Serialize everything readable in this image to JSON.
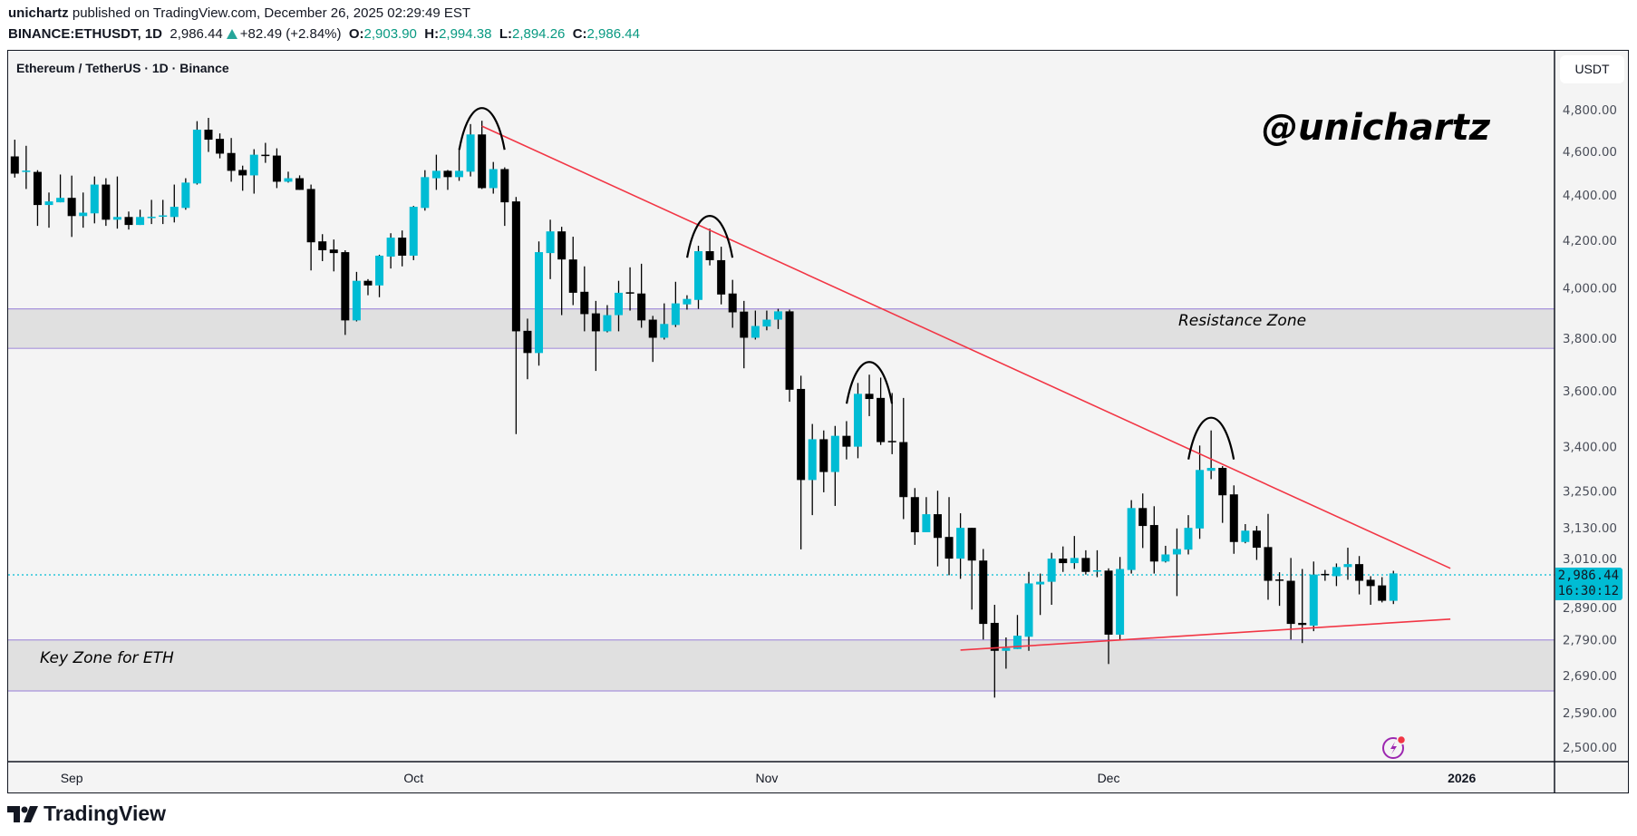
{
  "header": {
    "author": "unichartz",
    "published_text": "published on TradingView.com, December 26, 2025 02:29:49 EST",
    "symbol": "BINANCE:ETHUSDT, 1D",
    "last_price": "2,986.44",
    "change": "+82.49 (+2.84%)",
    "o_label": "O:",
    "o_value": "2,903.90",
    "h_label": "H:",
    "h_value": "2,994.38",
    "l_label": "L:",
    "l_value": "2,894.26",
    "c_label": "C:",
    "c_value": "2,986.44"
  },
  "pane": {
    "title": "Ethereum / TetherUS · 1D · Binance",
    "currency": "USDT",
    "watermark": "@unichartz",
    "current_price": "2,986.44",
    "countdown": "16:30:12",
    "resistance_label": "Resistance Zone",
    "key_zone_label": "Key Zone for ETH",
    "brand": "TradingView"
  },
  "colors": {
    "bull": "#00bcd4",
    "bear": "#000000",
    "wick": "#000000",
    "trendline": "#f23645",
    "zone_fill": "#e0e0e0",
    "zone_border": "#a894dc",
    "price_line": "#00bcd4"
  },
  "chart_data": {
    "type": "candlestick",
    "title": "Ethereum / TetherUS · 1D · Binance",
    "y_scale": "log",
    "ylim": [
      2500,
      4800
    ],
    "grid": false,
    "y_ticks": [
      "4,800.00",
      "4,600.00",
      "4,400.00",
      "4,200.00",
      "4,000.00",
      "3,800.00",
      "3,600.00",
      "3,400.00",
      "3,250.00",
      "3,130.00",
      "3,010.00",
      "2,890.00",
      "2,790.00",
      "2,690.00",
      "2,590.00",
      "2,500.00"
    ],
    "x_ticks": [
      {
        "label": "Sep",
        "date": "2025-09-01"
      },
      {
        "label": "Oct",
        "date": "2025-10-01"
      },
      {
        "label": "Nov",
        "date": "2025-11-01"
      },
      {
        "label": "Dec",
        "date": "2025-12-01"
      },
      {
        "label": "2026",
        "date": "2026-01-01"
      }
    ],
    "columns": [
      "date",
      "open",
      "high",
      "low",
      "close"
    ],
    "candles": [
      [
        "2025-08-27",
        4576,
        4655,
        4478,
        4496
      ],
      [
        "2025-08-28",
        4505,
        4626,
        4426,
        4510
      ],
      [
        "2025-08-29",
        4504,
        4512,
        4262,
        4354
      ],
      [
        "2025-08-30",
        4354,
        4410,
        4254,
        4370
      ],
      [
        "2025-08-31",
        4366,
        4492,
        4366,
        4386
      ],
      [
        "2025-09-01",
        4386,
        4487,
        4214,
        4305
      ],
      [
        "2025-09-02",
        4305,
        4410,
        4254,
        4320
      ],
      [
        "2025-09-03",
        4317,
        4483,
        4273,
        4446
      ],
      [
        "2025-09-04",
        4446,
        4475,
        4262,
        4289
      ],
      [
        "2025-09-05",
        4289,
        4483,
        4250,
        4301
      ],
      [
        "2025-09-06",
        4301,
        4325,
        4246,
        4266
      ],
      [
        "2025-09-07",
        4266,
        4333,
        4266,
        4301
      ],
      [
        "2025-09-08",
        4300,
        4377,
        4270,
        4302
      ],
      [
        "2025-09-09",
        4305,
        4377,
        4270,
        4308
      ],
      [
        "2025-09-10",
        4301,
        4446,
        4277,
        4346
      ],
      [
        "2025-09-11",
        4341,
        4475,
        4333,
        4455
      ],
      [
        "2025-09-12",
        4451,
        4744,
        4446,
        4703
      ],
      [
        "2025-09-13",
        4703,
        4760,
        4597,
        4655
      ],
      [
        "2025-09-14",
        4659,
        4685,
        4567,
        4589
      ],
      [
        "2025-09-15",
        4592,
        4663,
        4459,
        4509
      ],
      [
        "2025-09-16",
        4513,
        4533,
        4418,
        4488
      ],
      [
        "2025-09-17",
        4488,
        4610,
        4405,
        4584
      ],
      [
        "2025-09-18",
        4584,
        4640,
        4546,
        4582
      ],
      [
        "2025-09-19",
        4580,
        4614,
        4430,
        4459
      ],
      [
        "2025-09-20",
        4459,
        4505,
        4455,
        4475
      ],
      [
        "2025-09-21",
        4475,
        4488,
        4422,
        4422
      ],
      [
        "2025-09-22",
        4426,
        4446,
        4072,
        4191
      ],
      [
        "2025-09-23",
        4195,
        4226,
        4111,
        4157
      ],
      [
        "2025-09-24",
        4160,
        4203,
        4068,
        4145
      ],
      [
        "2025-09-25",
        4149,
        4157,
        3812,
        3869
      ],
      [
        "2025-09-26",
        3869,
        4066,
        3865,
        4029
      ],
      [
        "2025-09-27",
        4029,
        4036,
        3970,
        4010
      ],
      [
        "2025-09-28",
        4010,
        4138,
        3962,
        4134
      ],
      [
        "2025-09-29",
        4130,
        4230,
        4080,
        4211
      ],
      [
        "2025-09-30",
        4211,
        4242,
        4089,
        4134
      ],
      [
        "2025-10-01",
        4134,
        4350,
        4115,
        4346
      ],
      [
        "2025-10-02",
        4341,
        4512,
        4329,
        4480
      ],
      [
        "2025-10-03",
        4475,
        4584,
        4422,
        4509
      ],
      [
        "2025-10-04",
        4509,
        4513,
        4422,
        4480
      ],
      [
        "2025-10-05",
        4480,
        4615,
        4463,
        4509
      ],
      [
        "2025-10-06",
        4505,
        4730,
        4483,
        4680
      ],
      [
        "2025-10-07",
        4680,
        4746,
        4426,
        4430
      ],
      [
        "2025-10-08",
        4430,
        4550,
        4405,
        4517
      ],
      [
        "2025-10-09",
        4517,
        4525,
        4262,
        4366
      ],
      [
        "2025-10-10",
        4370,
        4390,
        3444,
        3826
      ],
      [
        "2025-10-11",
        3828,
        3876,
        3643,
        3742
      ],
      [
        "2025-10-12",
        3742,
        4195,
        3694,
        4149
      ],
      [
        "2025-10-13",
        4145,
        4289,
        4036,
        4238
      ],
      [
        "2025-10-14",
        4238,
        4258,
        3890,
        4118
      ],
      [
        "2025-10-15",
        4118,
        4215,
        3930,
        3980
      ],
      [
        "2025-10-16",
        3984,
        4089,
        3826,
        3894
      ],
      [
        "2025-10-17",
        3897,
        3947,
        3674,
        3826
      ],
      [
        "2025-10-18",
        3826,
        3930,
        3822,
        3890
      ],
      [
        "2025-10-19",
        3890,
        4029,
        3826,
        3980
      ],
      [
        "2025-10-20",
        3982,
        4085,
        3908,
        3980
      ],
      [
        "2025-10-21",
        3977,
        4100,
        3840,
        3869
      ],
      [
        "2025-10-22",
        3872,
        3887,
        3708,
        3801
      ],
      [
        "2025-10-23",
        3801,
        3937,
        3794,
        3855
      ],
      [
        "2025-10-24",
        3851,
        4025,
        3843,
        3937
      ],
      [
        "2025-10-25",
        3933,
        3970,
        3912,
        3955
      ],
      [
        "2025-10-26",
        3951,
        4176,
        3915,
        4153
      ],
      [
        "2025-10-27",
        4153,
        4250,
        4093,
        4115
      ],
      [
        "2025-10-28",
        4115,
        4172,
        3933,
        3973
      ],
      [
        "2025-10-29",
        3977,
        4033,
        3840,
        3901
      ],
      [
        "2025-10-30",
        3904,
        3947,
        3684,
        3801
      ],
      [
        "2025-10-31",
        3801,
        3908,
        3794,
        3847
      ],
      [
        "2025-11-01",
        3845,
        3908,
        3830,
        3872
      ],
      [
        "2025-11-02",
        3872,
        3915,
        3835,
        3905
      ],
      [
        "2025-11-03",
        3905,
        3912,
        3560,
        3604
      ],
      [
        "2025-11-04",
        3607,
        3656,
        3061,
        3286
      ],
      [
        "2025-11-05",
        3286,
        3480,
        3170,
        3426
      ],
      [
        "2025-11-06",
        3426,
        3457,
        3245,
        3313
      ],
      [
        "2025-11-07",
        3313,
        3473,
        3200,
        3438
      ],
      [
        "2025-11-08",
        3438,
        3490,
        3356,
        3400
      ],
      [
        "2025-11-09",
        3400,
        3629,
        3360,
        3589
      ],
      [
        "2025-11-10",
        3589,
        3660,
        3508,
        3570
      ],
      [
        "2025-11-11",
        3574,
        3649,
        3406,
        3416
      ],
      [
        "2025-11-12",
        3420,
        3592,
        3374,
        3418
      ],
      [
        "2025-11-13",
        3416,
        3574,
        3157,
        3229
      ],
      [
        "2025-11-14",
        3229,
        3259,
        3075,
        3115
      ],
      [
        "2025-11-15",
        3115,
        3229,
        3115,
        3173
      ],
      [
        "2025-11-16",
        3173,
        3250,
        3008,
        3097
      ],
      [
        "2025-11-17",
        3100,
        3229,
        2981,
        3032
      ],
      [
        "2025-11-18",
        3032,
        3176,
        2970,
        3129
      ],
      [
        "2025-11-19",
        3129,
        3129,
        2878,
        3026
      ],
      [
        "2025-11-20",
        3026,
        3062,
        2791,
        2836
      ],
      [
        "2025-11-21",
        2839,
        2892,
        2630,
        2759
      ],
      [
        "2025-11-22",
        2759,
        2797,
        2709,
        2767
      ],
      [
        "2025-11-23",
        2764,
        2862,
        2764,
        2802
      ],
      [
        "2025-11-24",
        2799,
        2991,
        2759,
        2956
      ],
      [
        "2025-11-25",
        2953,
        2986,
        2862,
        2961
      ],
      [
        "2025-11-26",
        2961,
        3050,
        2892,
        3032
      ],
      [
        "2025-11-27",
        3032,
        3070,
        2991,
        3018
      ],
      [
        "2025-11-28",
        3018,
        3103,
        3000,
        3034
      ],
      [
        "2025-11-29",
        3034,
        3058,
        2983,
        2991
      ],
      [
        "2025-11-30",
        2994,
        3058,
        2975,
        2996
      ],
      [
        "2025-12-01",
        2995,
        3002,
        2722,
        2805
      ],
      [
        "2025-12-02",
        2805,
        3037,
        2789,
        3000
      ],
      [
        "2025-12-03",
        2997,
        3219,
        2986,
        3193
      ],
      [
        "2025-12-04",
        3193,
        3241,
        3065,
        3135
      ],
      [
        "2025-12-05",
        3138,
        3199,
        2986,
        3023
      ],
      [
        "2025-12-06",
        3023,
        3072,
        3020,
        3045
      ],
      [
        "2025-12-07",
        3045,
        3127,
        2918,
        3062
      ],
      [
        "2025-12-08",
        3060,
        3170,
        3045,
        3129
      ],
      [
        "2025-12-09",
        3127,
        3404,
        3094,
        3320
      ],
      [
        "2025-12-10",
        3317,
        3457,
        3289,
        3327
      ],
      [
        "2025-12-11",
        3327,
        3333,
        3145,
        3235
      ],
      [
        "2025-12-12",
        3238,
        3268,
        3047,
        3084
      ],
      [
        "2025-12-13",
        3084,
        3141,
        3080,
        3120
      ],
      [
        "2025-12-14",
        3120,
        3135,
        3028,
        3066
      ],
      [
        "2025-12-15",
        3068,
        3174,
        2907,
        2964
      ],
      [
        "2025-12-16",
        2968,
        2990,
        2889,
        2966
      ],
      [
        "2025-12-17",
        2964,
        3034,
        2791,
        2836
      ],
      [
        "2025-12-18",
        2839,
        3000,
        2781,
        2833
      ],
      [
        "2025-12-19",
        2831,
        3023,
        2815,
        2983
      ],
      [
        "2025-12-20",
        2985,
        2997,
        2964,
        2983
      ],
      [
        "2025-12-21",
        2978,
        3017,
        2948,
        3006
      ],
      [
        "2025-12-22",
        3006,
        3066,
        2967,
        3015
      ],
      [
        "2025-12-23",
        3015,
        3040,
        2923,
        2964
      ],
      [
        "2025-12-24",
        2967,
        2978,
        2892,
        2948
      ],
      [
        "2025-12-25",
        2950,
        2975,
        2899,
        2904
      ],
      [
        "2025-12-26",
        2903.9,
        2994.38,
        2894.26,
        2986.44
      ]
    ],
    "zones": [
      {
        "name": "Resistance Zone",
        "from": 3760,
        "to": 3915
      },
      {
        "name": "Key Zone for ETH",
        "from": 2648,
        "to": 2790
      }
    ],
    "trendlines": [
      {
        "name": "descending resistance",
        "start": [
          "2025-10-07",
          4720
        ],
        "end": [
          "2025-12-31",
          3002
        ]
      },
      {
        "name": "ascending support",
        "start": [
          "2025-11-18",
          2761
        ],
        "end": [
          "2025-12-31",
          2850
        ]
      }
    ],
    "swing_high_arcs": [
      "2025-10-07",
      "2025-10-27",
      "2025-11-10",
      "2025-12-10"
    ]
  }
}
